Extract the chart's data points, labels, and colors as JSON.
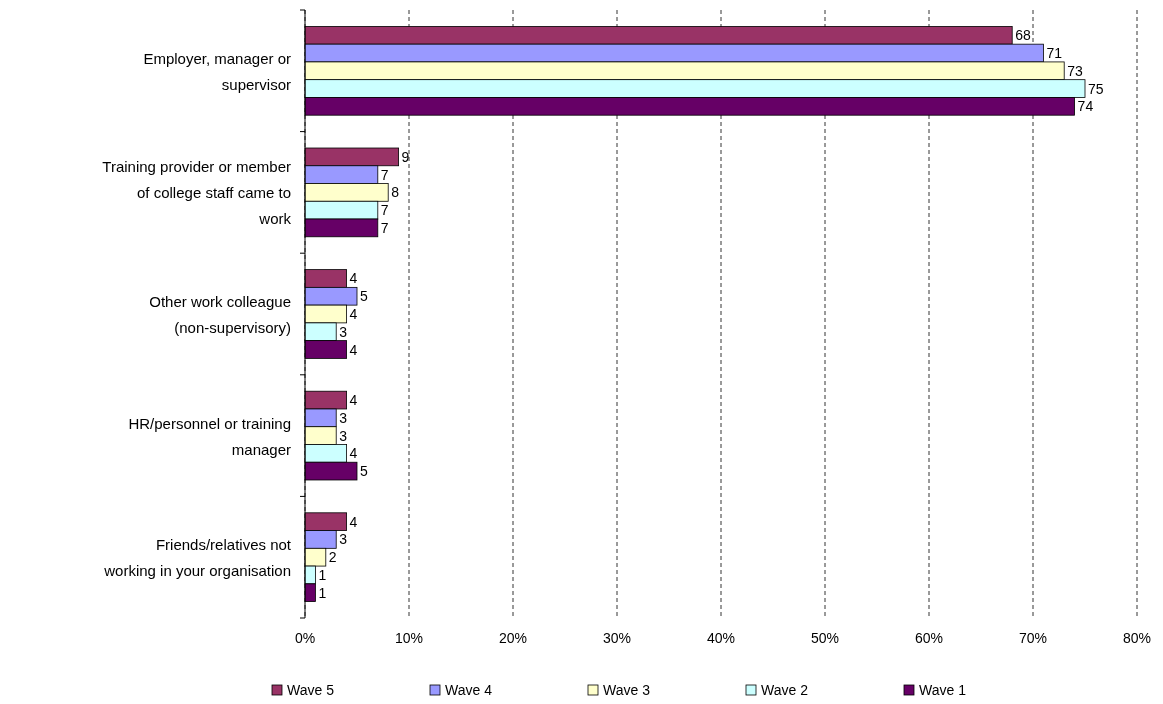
{
  "chart_data": {
    "type": "bar",
    "orientation": "horizontal",
    "categories": [
      "Employer, manager or supervisor",
      "Training provider or member of college staff came to work",
      "Other work colleague (non-supervisory)",
      "HR/personnel or training manager",
      "Friends/relatives not working in your organisation"
    ],
    "series": [
      {
        "name": "Wave 5",
        "color": "#993366",
        "values": [
          68,
          9,
          4,
          4,
          4
        ]
      },
      {
        "name": "Wave 4",
        "color": "#9999ff",
        "values": [
          71,
          7,
          5,
          3,
          3
        ]
      },
      {
        "name": "Wave 3",
        "color": "#ffffcc",
        "values": [
          73,
          8,
          4,
          3,
          2
        ]
      },
      {
        "name": "Wave 2",
        "color": "#ccffff",
        "values": [
          75,
          7,
          3,
          4,
          1
        ]
      },
      {
        "name": "Wave 1",
        "color": "#660066",
        "values": [
          74,
          7,
          4,
          5,
          1
        ]
      }
    ],
    "xlim": [
      0,
      80
    ],
    "xticks": [
      {
        "value": 0,
        "label": "0%"
      },
      {
        "value": 10,
        "label": "10%"
      },
      {
        "value": 20,
        "label": "20%"
      },
      {
        "value": 30,
        "label": "30%"
      },
      {
        "value": 40,
        "label": "40%"
      },
      {
        "value": 50,
        "label": "50%"
      },
      {
        "value": 60,
        "label": "60%"
      },
      {
        "value": 70,
        "label": "70%"
      },
      {
        "value": 80,
        "label": "80%"
      }
    ],
    "grid": "x",
    "data_labels": true,
    "legend": "bottom"
  }
}
